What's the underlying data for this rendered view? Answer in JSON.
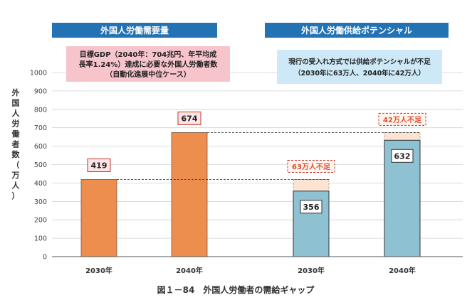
{
  "chart_data": {
    "type": "bar",
    "ylabel": "外国人労働者数（万人）",
    "ylim": [
      0,
      1000
    ],
    "yticks": [
      0,
      100,
      200,
      300,
      400,
      500,
      600,
      700,
      800,
      900,
      1000
    ],
    "grid": true,
    "caption": "図１－84　外国人労働者の需給ギャップ",
    "demand": {
      "header": "外国人労働需要量",
      "note_lines": [
        "目標GDP（2040年：704兆円、年平均成",
        "長率1.24%）達成に必要な外国人労働者数",
        "（自動化進展中位ケース）"
      ],
      "categories": [
        "2030年",
        "2040年"
      ],
      "values": [
        419,
        674
      ]
    },
    "supply": {
      "header": "外国人労働供給ポテンシャル",
      "note_lines": [
        "現行の受入れ方式では供給ポテンシャルが不足",
        "（2030年に63万人、2040年に42万人）"
      ],
      "categories": [
        "2030年",
        "2040年"
      ],
      "values": [
        356,
        632
      ],
      "shortfall": [
        63,
        42
      ],
      "shortfall_labels": [
        "63万人不足",
        "42万人不足"
      ]
    },
    "colors": {
      "header_bg": "#2272B4",
      "demand_bar": "#ED8E4E",
      "supply_bar": "#8EC1D1",
      "shortfall_fill": "#FCE3D2",
      "demand_note_bg": "#F7C4CB",
      "supply_note_bg": "#CDE8F6",
      "value_box_demand": "#FDE4E6",
      "value_box_supply": "#FFFFFF",
      "shortfall_text": "#E04A2A"
    }
  }
}
